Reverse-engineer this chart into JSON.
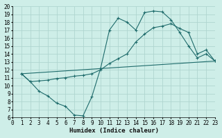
{
  "xlabel": "Humidex (Indice chaleur)",
  "bg_color": "#ceeee8",
  "line_color": "#1e6b6b",
  "grid_color": "#afd5d0",
  "xlim": [
    0,
    23
  ],
  "ylim": [
    6,
    20
  ],
  "xticks": [
    0,
    1,
    2,
    3,
    4,
    5,
    6,
    7,
    8,
    9,
    10,
    11,
    12,
    13,
    14,
    15,
    16,
    17,
    18,
    19,
    20,
    21,
    22,
    23
  ],
  "yticks": [
    6,
    7,
    8,
    9,
    10,
    11,
    12,
    13,
    14,
    15,
    16,
    17,
    18,
    19,
    20
  ],
  "line1_x": [
    1,
    2,
    3,
    4,
    5,
    6,
    7,
    8,
    9,
    10,
    11,
    12,
    13,
    14,
    15,
    16,
    17,
    18,
    19,
    20,
    21,
    22,
    23
  ],
  "line1_y": [
    11.5,
    10.5,
    9.3,
    8.7,
    7.8,
    7.4,
    6.3,
    6.2,
    8.6,
    12.2,
    17.0,
    18.5,
    18.0,
    17.0,
    19.2,
    19.4,
    19.3,
    18.3,
    16.7,
    15.0,
    13.5,
    14.0,
    13.1
  ],
  "line2_x": [
    1,
    2,
    3,
    4,
    5,
    6,
    7,
    8,
    9,
    10,
    11,
    12,
    13,
    14,
    15,
    16,
    17,
    18,
    19,
    20,
    21,
    22,
    23
  ],
  "line2_y": [
    11.5,
    10.5,
    10.6,
    10.7,
    10.9,
    11.0,
    11.2,
    11.3,
    11.5,
    12.0,
    12.8,
    13.4,
    14.0,
    15.5,
    16.5,
    17.3,
    17.5,
    17.8,
    17.2,
    16.7,
    14.0,
    14.5,
    13.1
  ],
  "line3_x": [
    1,
    23
  ],
  "line3_y": [
    11.5,
    13.1
  ]
}
